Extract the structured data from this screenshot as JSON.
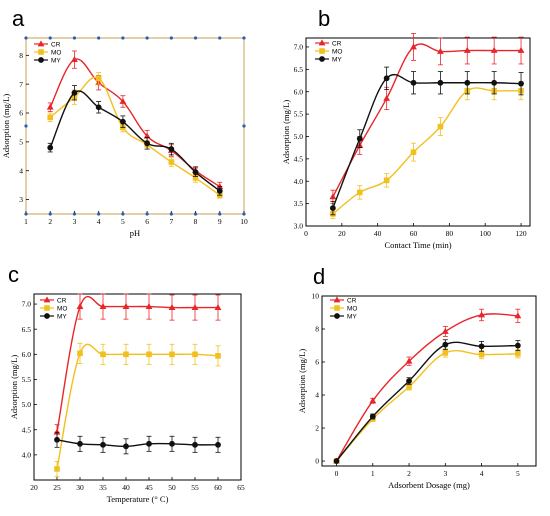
{
  "chart_data": [
    {
      "panel": "a",
      "type": "line",
      "xlabel": "pH",
      "ylabel": "Adsorption (mg/L)",
      "xlim": [
        1,
        10
      ],
      "ylim": [
        2.5,
        8.6
      ],
      "xticks": [
        1,
        2,
        3,
        4,
        5,
        6,
        7,
        8,
        9,
        10
      ],
      "yticks": [
        3,
        4,
        5,
        6,
        7,
        8
      ],
      "frame_color": "#c8a050",
      "legend_position": "top-left",
      "series": [
        {
          "name": "CR",
          "color": "#e8262a",
          "marker": "triangle",
          "x": [
            2,
            3,
            4,
            5,
            6,
            7,
            8,
            9
          ],
          "y": [
            6.2,
            7.85,
            7.05,
            6.4,
            5.2,
            4.7,
            4.0,
            3.45
          ],
          "err": [
            0.15,
            0.3,
            0.25,
            0.2,
            0.2,
            0.2,
            0.15,
            0.15
          ]
        },
        {
          "name": "MO",
          "color": "#f2c01e",
          "marker": "square",
          "x": [
            2,
            3,
            4,
            5,
            6,
            7,
            8,
            9
          ],
          "y": [
            5.85,
            6.55,
            7.2,
            5.5,
            4.9,
            4.3,
            3.75,
            3.15
          ],
          "err": [
            0.15,
            0.25,
            0.2,
            0.15,
            0.15,
            0.15,
            0.15,
            0.1
          ]
        },
        {
          "name": "MY",
          "color": "#111111",
          "marker": "circle",
          "x": [
            2,
            3,
            4,
            5,
            6,
            7,
            8,
            9
          ],
          "y": [
            4.8,
            6.7,
            6.2,
            5.7,
            4.95,
            4.75,
            3.95,
            3.3
          ],
          "err": [
            0.15,
            0.25,
            0.2,
            0.2,
            0.2,
            0.2,
            0.15,
            0.15
          ]
        }
      ]
    },
    {
      "panel": "b",
      "type": "line",
      "xlabel": "Contact Time (min)",
      "ylabel": "Adsorption (mg/L)",
      "xlim": [
        0,
        125
      ],
      "ylim": [
        3.0,
        7.2
      ],
      "xticks": [
        0,
        20,
        40,
        60,
        80,
        100,
        120
      ],
      "yticks": [
        3.0,
        3.5,
        4.0,
        4.5,
        5.0,
        5.5,
        6.0,
        6.5,
        7.0
      ],
      "ytick_decimals": 1,
      "frame_color": "#000000",
      "legend_position": "top-left",
      "series": [
        {
          "name": "CR",
          "color": "#e8262a",
          "marker": "triangle",
          "x": [
            15,
            30,
            45,
            60,
            75,
            90,
            105,
            120
          ],
          "y": [
            3.65,
            4.8,
            5.85,
            7.0,
            6.9,
            6.92,
            6.92,
            6.92
          ],
          "err": [
            0.15,
            0.2,
            0.25,
            0.3,
            0.3,
            0.3,
            0.3,
            0.3
          ]
        },
        {
          "name": "MO",
          "color": "#f2c01e",
          "marker": "square",
          "x": [
            15,
            30,
            45,
            60,
            75,
            90,
            105,
            120
          ],
          "y": [
            3.27,
            3.75,
            4.02,
            4.65,
            5.22,
            6.02,
            6.02,
            6.02
          ],
          "err": [
            0.1,
            0.15,
            0.15,
            0.2,
            0.2,
            0.2,
            0.2,
            0.2
          ]
        },
        {
          "name": "MY",
          "color": "#111111",
          "marker": "circle",
          "x": [
            15,
            30,
            45,
            60,
            75,
            90,
            105,
            120
          ],
          "y": [
            3.4,
            4.95,
            6.3,
            6.2,
            6.2,
            6.2,
            6.2,
            6.18
          ],
          "err": [
            0.15,
            0.2,
            0.25,
            0.25,
            0.25,
            0.25,
            0.25,
            0.25
          ]
        }
      ]
    },
    {
      "panel": "c",
      "type": "line",
      "xlabel": "Temperature (° C)",
      "ylabel": "Adsorption (mg/L)",
      "xlim": [
        20,
        65
      ],
      "ylim": [
        3.5,
        7.2
      ],
      "xticks": [
        20,
        25,
        30,
        35,
        40,
        45,
        50,
        55,
        60,
        65
      ],
      "yticks": [
        4.0,
        4.5,
        5.0,
        5.5,
        6.0,
        6.5,
        7.0
      ],
      "ytick_decimals": 1,
      "frame_color": "#000000",
      "legend_position": "top-left",
      "series": [
        {
          "name": "CR",
          "color": "#e8262a",
          "marker": "triangle",
          "x": [
            25,
            30,
            35,
            40,
            45,
            50,
            55,
            60
          ],
          "y": [
            4.45,
            6.95,
            6.95,
            6.95,
            6.95,
            6.93,
            6.93,
            6.93
          ],
          "err": [
            0.15,
            0.25,
            0.25,
            0.25,
            0.25,
            0.25,
            0.25,
            0.25
          ]
        },
        {
          "name": "MO",
          "color": "#f2c01e",
          "marker": "square",
          "x": [
            25,
            30,
            35,
            40,
            45,
            50,
            55,
            60
          ],
          "y": [
            3.72,
            6.02,
            6.0,
            6.0,
            6.0,
            6.0,
            6.0,
            5.97
          ],
          "err": [
            0.15,
            0.2,
            0.2,
            0.2,
            0.2,
            0.2,
            0.2,
            0.2
          ]
        },
        {
          "name": "MY",
          "color": "#111111",
          "marker": "circle",
          "x": [
            25,
            30,
            35,
            40,
            45,
            50,
            55,
            60
          ],
          "y": [
            4.3,
            4.22,
            4.2,
            4.17,
            4.22,
            4.22,
            4.2,
            4.2
          ],
          "err": [
            0.15,
            0.15,
            0.15,
            0.15,
            0.15,
            0.15,
            0.15,
            0.15
          ]
        }
      ]
    },
    {
      "panel": "d",
      "type": "line",
      "xlabel": "Adsorbent Dosage (mg)",
      "ylabel": "Adsorption (mg/L)",
      "xlim": [
        -0.4,
        5.5
      ],
      "ylim": [
        -0.3,
        10
      ],
      "xticks": [
        0,
        1,
        2,
        3,
        4,
        5
      ],
      "yticks": [
        0,
        2,
        4,
        6,
        8,
        10
      ],
      "frame_color": "#000000",
      "legend_position": "top-left",
      "series": [
        {
          "name": "CR",
          "color": "#e8262a",
          "marker": "triangle",
          "x": [
            0,
            1,
            2,
            3,
            4,
            5
          ],
          "y": [
            0,
            3.65,
            6.05,
            7.85,
            8.85,
            8.8
          ],
          "err": [
            0,
            0.15,
            0.25,
            0.3,
            0.35,
            0.4
          ]
        },
        {
          "name": "MO",
          "color": "#f2c01e",
          "marker": "square",
          "x": [
            0,
            1,
            2,
            3,
            4,
            5
          ],
          "y": [
            0,
            2.55,
            4.5,
            6.55,
            6.45,
            6.5
          ],
          "err": [
            0,
            0.15,
            0.2,
            0.25,
            0.25,
            0.25
          ]
        },
        {
          "name": "MY",
          "color": "#111111",
          "marker": "circle",
          "x": [
            0,
            1,
            2,
            3,
            4,
            5
          ],
          "y": [
            0,
            2.7,
            4.85,
            7.05,
            6.95,
            7.0
          ],
          "err": [
            0,
            0.15,
            0.2,
            0.3,
            0.3,
            0.3
          ]
        }
      ]
    }
  ]
}
